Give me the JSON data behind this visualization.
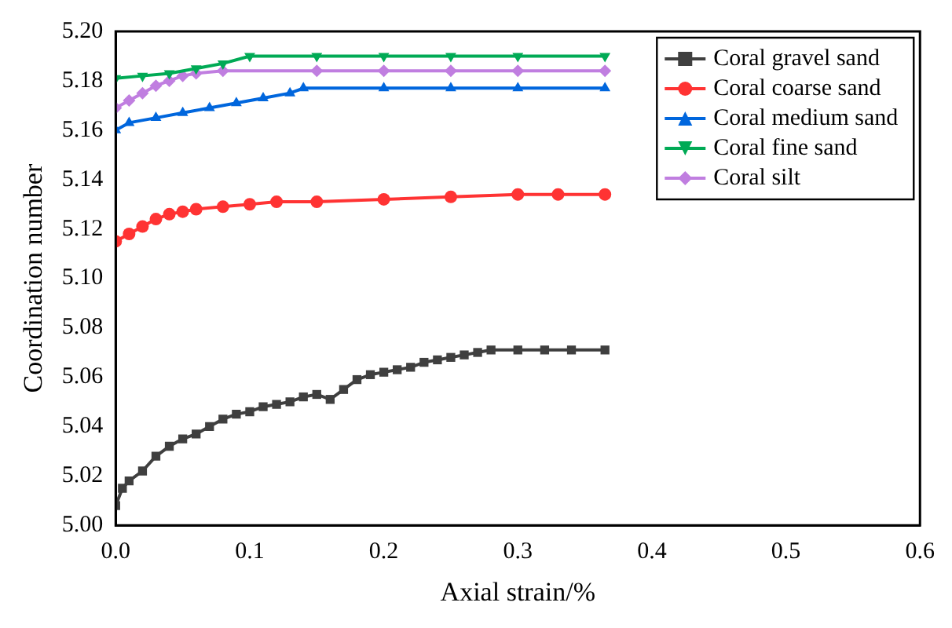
{
  "chart_data": {
    "type": "line",
    "xlabel": "Axial strain/%",
    "ylabel": "Coordination number",
    "xlim": [
      0,
      0.6
    ],
    "ylim": [
      5.0,
      5.2
    ],
    "xticks": [
      {
        "value": 0,
        "label": "0.0"
      },
      0.1,
      0.2,
      0.3,
      0.4,
      0.5,
      0.6
    ],
    "yticks": [
      {
        "value": 5.0,
        "label": "5.00"
      },
      {
        "value": 5.02,
        "label": "5.02"
      },
      {
        "value": 5.04,
        "label": "5.04"
      },
      {
        "value": 5.06,
        "label": "5.06"
      },
      {
        "value": 5.08,
        "label": "5.08"
      },
      {
        "value": 5.1,
        "label": "5.10"
      },
      {
        "value": 5.12,
        "label": "5.12"
      },
      {
        "value": 5.14,
        "label": "5.14"
      },
      {
        "value": 5.16,
        "label": "5.16"
      },
      {
        "value": 5.18,
        "label": "5.18"
      },
      {
        "value": 5.2,
        "label": "5.20"
      }
    ],
    "grid": false,
    "legend": "top right",
    "line_style": "solid",
    "series": [
      {
        "name": "Coral gravel sand",
        "color": "#3f3f3f",
        "marker": "square",
        "x": [
          0,
          0.005,
          0.01,
          0.02,
          0.03,
          0.04,
          0.05,
          0.06,
          0.07,
          0.08,
          0.09,
          0.1,
          0.11,
          0.12,
          0.13,
          0.14,
          0.15,
          0.16,
          0.17,
          0.18,
          0.19,
          0.2,
          0.21,
          0.22,
          0.23,
          0.24,
          0.25,
          0.26,
          0.27,
          0.28,
          0.3,
          0.32,
          0.34,
          0.365
        ],
        "values": [
          5.008,
          5.015,
          5.018,
          5.022,
          5.028,
          5.032,
          5.035,
          5.037,
          5.04,
          5.043,
          5.045,
          5.046,
          5.048,
          5.049,
          5.05,
          5.052,
          5.053,
          5.051,
          5.055,
          5.059,
          5.061,
          5.062,
          5.063,
          5.064,
          5.066,
          5.067,
          5.068,
          5.069,
          5.07,
          5.071,
          5.071,
          5.071,
          5.071,
          5.071
        ]
      },
      {
        "name": "Coral coarse sand",
        "color": "#ff3333",
        "marker": "circle",
        "x": [
          0,
          0.01,
          0.02,
          0.03,
          0.04,
          0.05,
          0.06,
          0.08,
          0.1,
          0.12,
          0.15,
          0.2,
          0.25,
          0.3,
          0.33,
          0.365
        ],
        "values": [
          5.115,
          5.118,
          5.121,
          5.124,
          5.126,
          5.127,
          5.128,
          5.129,
          5.13,
          5.131,
          5.131,
          5.132,
          5.133,
          5.134,
          5.134,
          5.134
        ]
      },
      {
        "name": "Coral medium sand",
        "color": "#0066dd",
        "marker": "triangle",
        "x": [
          0,
          0.01,
          0.03,
          0.05,
          0.07,
          0.09,
          0.11,
          0.13,
          0.14,
          0.2,
          0.25,
          0.3,
          0.365
        ],
        "values": [
          5.16,
          5.163,
          5.165,
          5.167,
          5.169,
          5.171,
          5.173,
          5.175,
          5.177,
          5.177,
          5.177,
          5.177,
          5.177
        ]
      },
      {
        "name": "Coral fine sand",
        "color": "#00aa55",
        "marker": "triangle-down",
        "x": [
          0,
          0.02,
          0.04,
          0.06,
          0.08,
          0.1,
          0.15,
          0.2,
          0.25,
          0.3,
          0.365
        ],
        "values": [
          5.181,
          5.182,
          5.183,
          5.185,
          5.187,
          5.19,
          5.19,
          5.19,
          5.19,
          5.19,
          5.19
        ]
      },
      {
        "name": "Coral silt",
        "color": "#c07ee0",
        "marker": "diamond",
        "x": [
          0,
          0.01,
          0.02,
          0.03,
          0.04,
          0.05,
          0.06,
          0.08,
          0.15,
          0.2,
          0.25,
          0.3,
          0.365
        ],
        "values": [
          5.169,
          5.172,
          5.175,
          5.178,
          5.18,
          5.182,
          5.183,
          5.184,
          5.184,
          5.184,
          5.184,
          5.184,
          5.184
        ]
      }
    ]
  }
}
